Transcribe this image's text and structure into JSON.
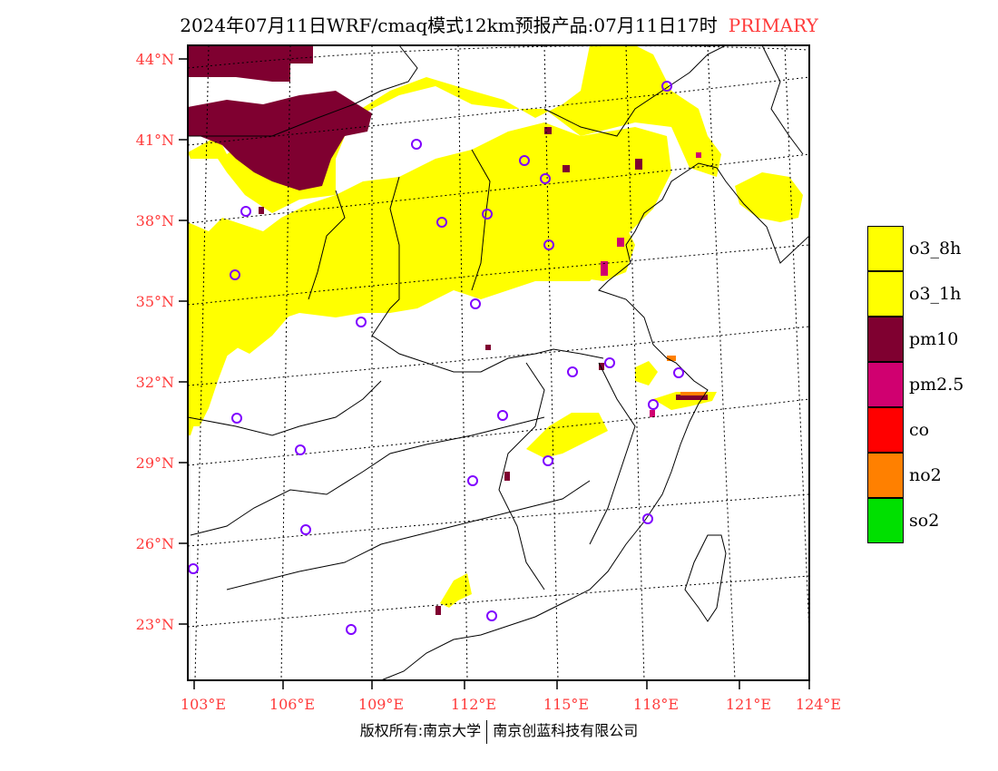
{
  "title": {
    "main": "2024年07月11日WRF/cmaq模式12km预报产品:07月11日17时",
    "tag": "PRIMARY"
  },
  "map": {
    "lat_labels": [
      "44°N",
      "41°N",
      "38°N",
      "35°N",
      "32°N",
      "29°N",
      "26°N",
      "23°N"
    ],
    "lon_labels": [
      "103°E",
      "106°E",
      "109°E",
      "112°E",
      "115°E",
      "118°E",
      "121°E",
      "124°E"
    ],
    "colors": {
      "o3": "#ffff00",
      "pm10": "#7f0030",
      "pm25": "#d00070",
      "no2": "#ff8000",
      "station": "#7f00ff"
    }
  },
  "legend": [
    {
      "label": "o3_8h",
      "color": "#ffff00"
    },
    {
      "label": "o3_1h",
      "color": "#ffff00"
    },
    {
      "label": "pm10",
      "color": "#7f0030"
    },
    {
      "label": "pm2.5",
      "color": "#d00070"
    },
    {
      "label": "co",
      "color": "#ff0000"
    },
    {
      "label": "no2",
      "color": "#ff8000"
    },
    {
      "label": "so2",
      "color": "#00e000"
    }
  ],
  "footer": {
    "left": "版权所有:南京大学",
    "right": "南京创蓝科技有限公司"
  }
}
